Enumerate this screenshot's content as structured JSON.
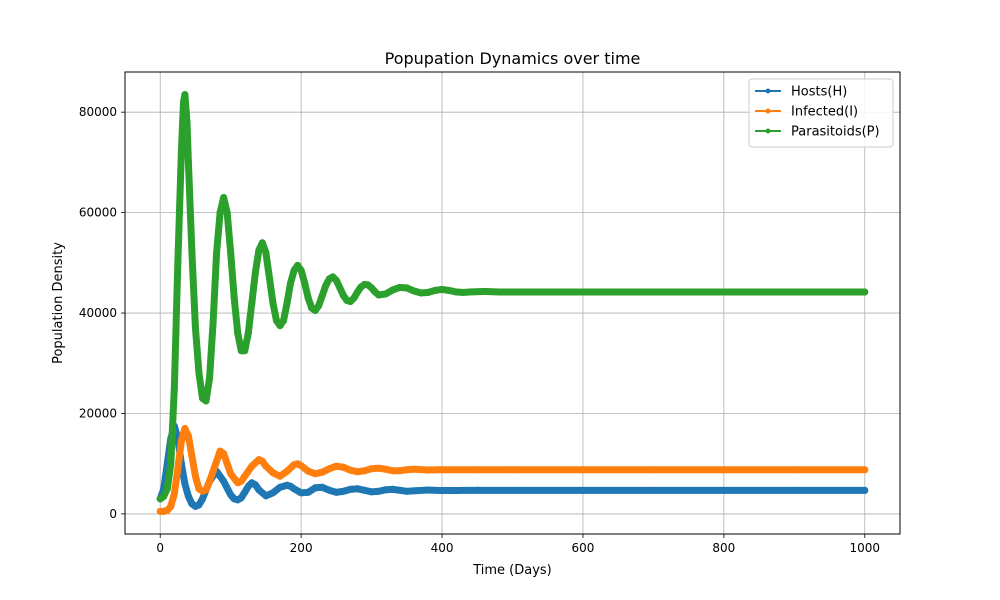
{
  "chart_data": {
    "type": "line",
    "title": "Popupation Dynamics over time",
    "xlabel": "Time (Days)",
    "ylabel": "Population Density",
    "xlim": [
      -50,
      1050
    ],
    "ylim": [
      -4000,
      88000
    ],
    "xticks": [
      0,
      200,
      400,
      600,
      800,
      1000
    ],
    "yticks": [
      0,
      20000,
      40000,
      60000,
      80000
    ],
    "grid": true,
    "legend_position": "top-right",
    "series": [
      {
        "name": "Hosts(H)",
        "color": "#1f77b4",
        "x": [
          0,
          5,
          10,
          15,
          20,
          25,
          30,
          35,
          40,
          45,
          50,
          55,
          60,
          70,
          80,
          90,
          100,
          105,
          110,
          115,
          120,
          125,
          130,
          135,
          140,
          150,
          160,
          170,
          180,
          185,
          190,
          200,
          210,
          220,
          230,
          240,
          250,
          260,
          270,
          280,
          290,
          300,
          310,
          320,
          330,
          340,
          350,
          360,
          380,
          400,
          450,
          500,
          600,
          700,
          800,
          900,
          1000
        ],
        "values": [
          3000,
          5000,
          10000,
          15000,
          17500,
          15000,
          10000,
          6000,
          3500,
          2000,
          1500,
          1800,
          3000,
          6500,
          8500,
          6500,
          3800,
          3000,
          2800,
          3200,
          4300,
          5500,
          6200,
          5800,
          4800,
          3600,
          4200,
          5300,
          5700,
          5500,
          5000,
          4200,
          4300,
          5200,
          5300,
          4700,
          4300,
          4500,
          4900,
          5000,
          4700,
          4400,
          4500,
          4800,
          4900,
          4700,
          4500,
          4600,
          4750,
          4650,
          4700,
          4680,
          4680,
          4680,
          4680,
          4680,
          4680
        ]
      },
      {
        "name": "Infected(I)",
        "color": "#ff7f0e",
        "x": [
          0,
          5,
          10,
          15,
          20,
          25,
          30,
          35,
          40,
          45,
          50,
          55,
          60,
          65,
          70,
          80,
          85,
          90,
          95,
          100,
          110,
          115,
          120,
          130,
          140,
          145,
          150,
          160,
          170,
          180,
          190,
          195,
          200,
          210,
          220,
          230,
          240,
          250,
          260,
          270,
          280,
          290,
          300,
          310,
          320,
          330,
          340,
          350,
          360,
          380,
          400,
          450,
          500,
          600,
          700,
          800,
          900,
          1000
        ],
        "values": [
          500,
          500,
          700,
          1500,
          4000,
          9000,
          14500,
          17000,
          15500,
          11500,
          7500,
          5000,
          4500,
          4800,
          6500,
          10500,
          12500,
          12000,
          10000,
          8000,
          6200,
          6500,
          7500,
          9500,
          10800,
          10500,
          9500,
          8200,
          7500,
          8500,
          9800,
          10000,
          9600,
          8500,
          8000,
          8300,
          9000,
          9500,
          9300,
          8700,
          8400,
          8600,
          9000,
          9100,
          8900,
          8600,
          8600,
          8800,
          8900,
          8750,
          8800,
          8800,
          8800,
          8800,
          8800,
          8800,
          8800,
          8800
        ]
      },
      {
        "name": "Parasitoids(P)",
        "color": "#2ca02c",
        "x": [
          0,
          5,
          10,
          15,
          20,
          25,
          30,
          33,
          35,
          38,
          40,
          45,
          50,
          55,
          60,
          65,
          70,
          75,
          80,
          85,
          90,
          95,
          100,
          105,
          110,
          115,
          120,
          125,
          130,
          135,
          140,
          145,
          150,
          155,
          160,
          165,
          170,
          175,
          180,
          185,
          190,
          195,
          200,
          205,
          210,
          215,
          220,
          225,
          230,
          235,
          240,
          245,
          250,
          255,
          260,
          265,
          270,
          275,
          280,
          285,
          290,
          295,
          300,
          305,
          310,
          320,
          330,
          340,
          350,
          355,
          360,
          370,
          380,
          390,
          400,
          410,
          420,
          430,
          440,
          460,
          480,
          500,
          550,
          600,
          700,
          800,
          900,
          1000
        ],
        "values": [
          3000,
          3500,
          5000,
          10000,
          25000,
          50000,
          72000,
          82000,
          83500,
          78000,
          70000,
          52000,
          37000,
          28000,
          23000,
          22500,
          27000,
          38000,
          52000,
          60000,
          63000,
          60000,
          52000,
          43000,
          36000,
          32500,
          32500,
          36000,
          42000,
          48000,
          52500,
          54000,
          52000,
          47000,
          42000,
          38500,
          37500,
          38500,
          42000,
          46000,
          48500,
          49500,
          48500,
          46000,
          43000,
          41000,
          40500,
          41500,
          43500,
          45500,
          46800,
          47200,
          46500,
          45000,
          43500,
          42500,
          42300,
          43000,
          44200,
          45200,
          45700,
          45600,
          45000,
          44200,
          43600,
          43800,
          44600,
          45100,
          45000,
          44700,
          44400,
          44000,
          44100,
          44500,
          44700,
          44500,
          44200,
          44100,
          44200,
          44300,
          44200,
          44200,
          44200,
          44200,
          44200,
          44200,
          44200,
          44200
        ]
      }
    ]
  }
}
